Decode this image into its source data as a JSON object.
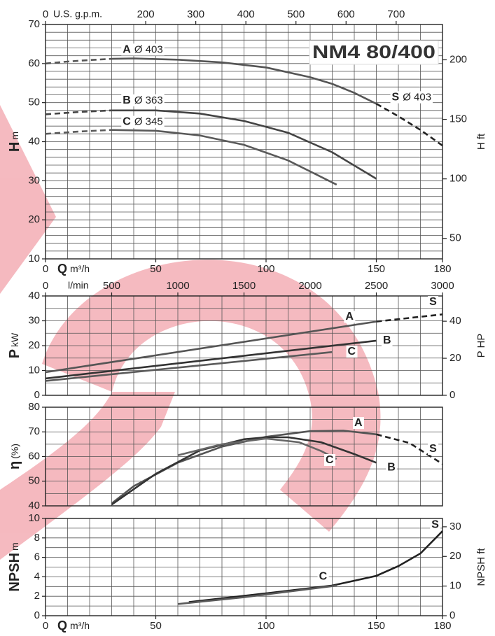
{
  "chart_data": [
    {
      "type": "line",
      "title": "NM4 80/400",
      "ylabel": "H",
      "ylabel_unit": "m",
      "y2label": "H ft",
      "xlabel": "Q",
      "xlabel_unit": "m³/h",
      "x2label": "U.S. g.p.m.",
      "xlim": [
        0,
        180
      ],
      "xticks": [
        0,
        50,
        100,
        150,
        180
      ],
      "xgrid": [
        0,
        10,
        20,
        30,
        40,
        50,
        60,
        70,
        80,
        90,
        100,
        110,
        120,
        130,
        140,
        150,
        160,
        170,
        180
      ],
      "x2lim": [
        0,
        792.5
      ],
      "x2ticks": [
        0,
        200,
        300,
        400,
        500,
        600,
        700
      ],
      "ylim": [
        10,
        70
      ],
      "yticks": [
        10,
        20,
        30,
        40,
        50,
        60,
        70
      ],
      "ygrid": [
        10,
        12,
        14,
        16,
        18,
        20,
        22,
        24,
        26,
        28,
        30,
        32,
        34,
        36,
        38,
        40,
        42,
        44,
        46,
        48,
        50,
        52,
        54,
        56,
        58,
        60,
        62,
        64,
        66,
        68,
        70
      ],
      "y2lim": [
        32.81,
        229.66
      ],
      "y2ticks": [
        50,
        100,
        150,
        200
      ],
      "series": [
        {
          "name": "A",
          "label": "Ø 403",
          "color": "#555555",
          "segments": [
            {
              "dashed": true,
              "x": [
                0,
                10,
                20,
                30
              ],
              "values": [
                60,
                60.5,
                60.9,
                61.2
              ]
            },
            {
              "dashed": false,
              "x": [
                30,
                40,
                60,
                80,
                100,
                120,
                130,
                140,
                150
              ],
              "values": [
                61.2,
                61.3,
                61,
                60.3,
                59,
                56.5,
                54.8,
                52.5,
                49.7
              ]
            }
          ]
        },
        {
          "name": "S",
          "label": "Ø 403",
          "color": "#222222",
          "segments": [
            {
              "dashed": true,
              "x": [
                150,
                160,
                170,
                180
              ],
              "values": [
                49.7,
                46.5,
                43,
                39
              ]
            }
          ]
        },
        {
          "name": "B",
          "label": "Ø 363",
          "color": "#444444",
          "segments": [
            {
              "dashed": true,
              "x": [
                0,
                15,
                30
              ],
              "values": [
                47,
                47.6,
                48
              ]
            },
            {
              "dashed": false,
              "x": [
                30,
                50,
                70,
                90,
                110,
                130,
                150
              ],
              "values": [
                48,
                48,
                47.2,
                45.3,
                42.3,
                37.3,
                30.5
              ]
            }
          ]
        },
        {
          "name": "C",
          "label": "Ø 345",
          "color": "#5a5a5a",
          "segments": [
            {
              "dashed": true,
              "x": [
                0,
                15,
                30
              ],
              "values": [
                42,
                42.6,
                43
              ]
            },
            {
              "dashed": false,
              "x": [
                30,
                50,
                70,
                90,
                110,
                132
              ],
              "values": [
                43,
                42.8,
                41.6,
                39.2,
                35.2,
                29
              ]
            }
          ]
        }
      ]
    },
    {
      "type": "line",
      "ylabel": "P",
      "ylabel_unit": "kW",
      "y2label": "P  HP",
      "x2label": "l/min",
      "xlim": [
        0,
        180
      ],
      "xgrid": [
        0,
        10,
        20,
        30,
        40,
        50,
        60,
        70,
        80,
        90,
        100,
        110,
        120,
        130,
        140,
        150,
        160,
        170,
        180
      ],
      "x2lim": [
        0,
        3000
      ],
      "x2ticks": [
        0,
        500,
        1000,
        1500,
        2000,
        2500,
        3000
      ],
      "ylim": [
        0,
        40
      ],
      "yticks": [
        0,
        10,
        20,
        30,
        40
      ],
      "ygrid": [
        0,
        5,
        10,
        15,
        20,
        25,
        30,
        35,
        40
      ],
      "y2lim": [
        0,
        53.64
      ],
      "y2ticks": [
        0,
        20,
        40
      ],
      "series": [
        {
          "name": "A",
          "color": "#555555",
          "segments": [
            {
              "dashed": false,
              "x": [
                0,
                150
              ],
              "values": [
                9.3,
                29.7
              ]
            }
          ]
        },
        {
          "name": "S",
          "color": "#222222",
          "segments": [
            {
              "dashed": true,
              "x": [
                150,
                180
              ],
              "values": [
                29.7,
                32.6
              ]
            }
          ]
        },
        {
          "name": "B",
          "color": "#333333",
          "segments": [
            {
              "dashed": false,
              "x": [
                0,
                150
              ],
              "values": [
                6.8,
                22
              ]
            }
          ]
        },
        {
          "name": "C",
          "color": "#5a5a5a",
          "segments": [
            {
              "dashed": false,
              "x": [
                0,
                130
              ],
              "values": [
                5.8,
                17.4
              ]
            }
          ]
        }
      ]
    },
    {
      "type": "line",
      "ylabel": "η",
      "ylabel_unit": "(%)",
      "xlim": [
        0,
        180
      ],
      "xgrid": [
        0,
        10,
        20,
        30,
        40,
        50,
        60,
        70,
        80,
        90,
        100,
        110,
        120,
        130,
        140,
        150,
        160,
        170,
        180
      ],
      "ylim": [
        40,
        80
      ],
      "yticks": [
        40,
        50,
        60,
        70,
        80
      ],
      "ygrid": [
        40,
        45,
        50,
        55,
        60,
        65,
        70,
        75,
        80
      ],
      "series": [
        {
          "name": "A",
          "color": "#555555",
          "segments": [
            {
              "dashed": false,
              "x": [
                30,
                40,
                60,
                80,
                100,
                120,
                135,
                150
              ],
              "values": [
                41,
                48,
                57.5,
                64,
                68,
                70.3,
                70.5,
                69
              ]
            }
          ]
        },
        {
          "name": "S",
          "color": "#222222",
          "segments": [
            {
              "dashed": true,
              "x": [
                150,
                165,
                180
              ],
              "values": [
                69,
                65.5,
                57
              ]
            }
          ]
        },
        {
          "name": "B",
          "color": "#333333",
          "segments": [
            {
              "dashed": false,
              "x": [
                30,
                50,
                70,
                90,
                100,
                110,
                125,
                140,
                150
              ],
              "values": [
                40.5,
                53,
                62.5,
                67,
                67.8,
                67.8,
                65.8,
                61,
                57.5
              ]
            }
          ]
        },
        {
          "name": "C",
          "color": "#666666",
          "segments": [
            {
              "dashed": false,
              "x": [
                60,
                80,
                100,
                115,
                125,
                132
              ],
              "values": [
                60.5,
                65,
                67.3,
                65.8,
                62.2,
                59
              ]
            }
          ]
        }
      ]
    },
    {
      "type": "line",
      "ylabel": "NPSH",
      "ylabel_unit": "m",
      "y2label": "NPSH ft",
      "xlabel": "Q",
      "xlabel_unit": "m³/h",
      "xlim": [
        0,
        180
      ],
      "xticks": [
        0,
        50,
        100,
        150,
        180
      ],
      "xgrid": [
        0,
        10,
        20,
        30,
        40,
        50,
        60,
        70,
        80,
        90,
        100,
        110,
        120,
        130,
        140,
        150,
        160,
        170,
        180
      ],
      "ylim": [
        0,
        10
      ],
      "yticks": [
        0,
        2,
        4,
        6,
        8,
        10
      ],
      "ygrid": [
        0,
        1,
        2,
        3,
        4,
        5,
        6,
        7,
        8,
        9,
        10
      ],
      "y2lim": [
        0,
        32.81
      ],
      "y2ticks": [
        0,
        10,
        20,
        30
      ],
      "series": [
        {
          "name": "S",
          "color": "#222222",
          "segments": [
            {
              "dashed": false,
              "x": [
                65,
                100,
                130,
                140,
                150,
                160,
                170,
                180
              ],
              "values": [
                1.4,
                2.3,
                3.1,
                3.6,
                4.1,
                5.1,
                6.4,
                8.7
              ]
            }
          ]
        },
        {
          "name": "C",
          "color": "#5a5a5a",
          "segments": [
            {
              "dashed": false,
              "x": [
                60,
                90,
                132
              ],
              "values": [
                1.2,
                1.9,
                3.1
              ]
            }
          ]
        }
      ]
    }
  ]
}
